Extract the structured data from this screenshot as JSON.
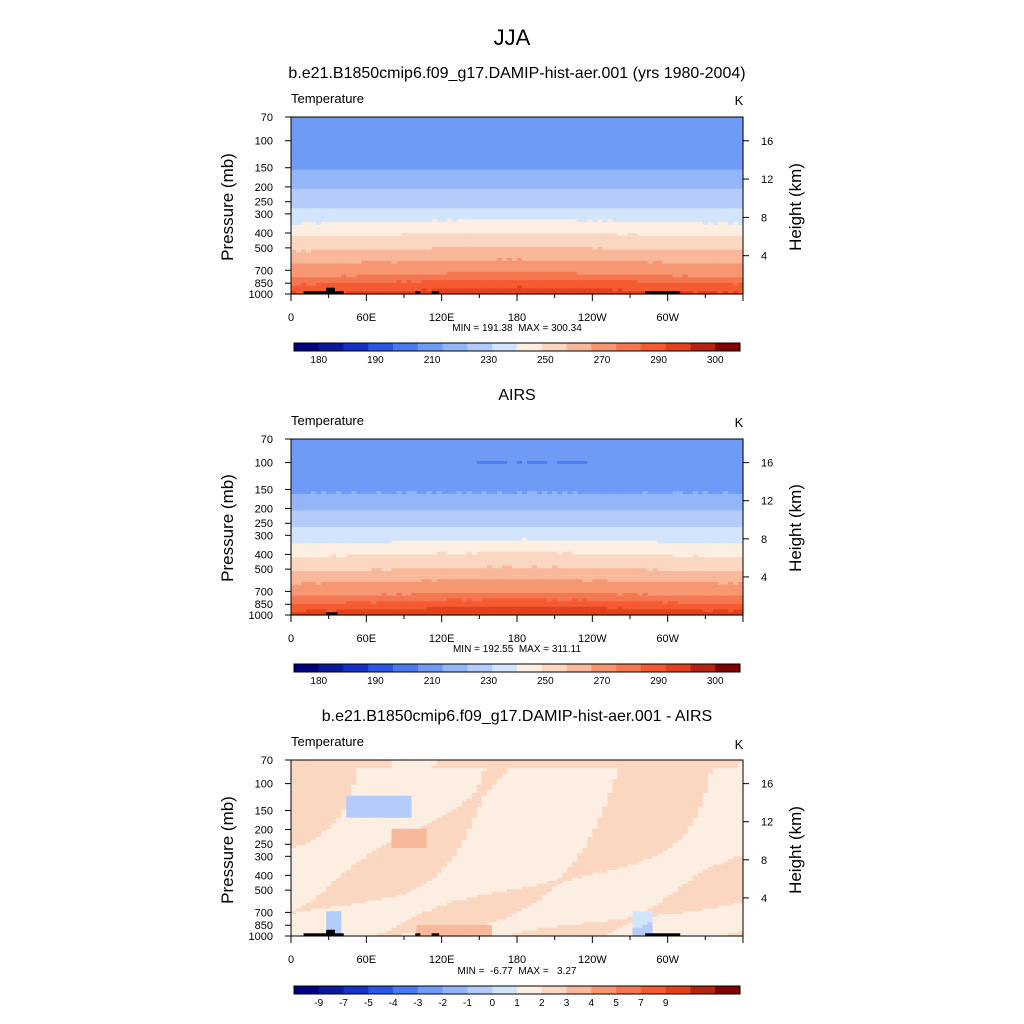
{
  "page": {
    "season": "JJA"
  },
  "colors": {
    "temp_palette": [
      "#00007f",
      "#0a1a9c",
      "#1431c8",
      "#2a56e6",
      "#4a7af0",
      "#6f9af6",
      "#93b6f9",
      "#b5ccfb",
      "#d3e4fd",
      "#fcefe2",
      "#fbd6c1",
      "#f8b899",
      "#f69772",
      "#f57750",
      "#f55a31",
      "#e3401d",
      "#b52411",
      "#7f0000"
    ],
    "temp_levels": [
      175,
      180,
      185,
      190,
      200,
      210,
      220,
      230,
      240,
      250,
      260,
      270,
      280,
      285,
      290,
      295,
      300
    ],
    "diff_palette": [
      "#00007f",
      "#0a1a9c",
      "#1431c8",
      "#2a56e6",
      "#4a7af0",
      "#6f9af6",
      "#93b6f9",
      "#b5ccfb",
      "#d3e4fd",
      "#fcefe2",
      "#fbd6c1",
      "#f8b899",
      "#f69772",
      "#f57750",
      "#f55a31",
      "#e3401d",
      "#b52411",
      "#7f0000"
    ],
    "diff_levels": [
      -11,
      -9,
      -8,
      -7,
      -6,
      -5,
      -4,
      -3,
      -2,
      -1,
      0,
      1,
      2,
      3,
      4,
      5,
      7,
      9
    ],
    "terrain": "#000000"
  },
  "chart_data": [
    {
      "type": "heatmap",
      "id": "model",
      "title": "b.e21.B1850cmip6.f09_g17.DAMIP-hist-aer.001 (yrs 1980-2004)",
      "left_label": "Temperature",
      "units": "K",
      "ylabel": "Pressure (mb)",
      "ylabel_right": "Height (km)",
      "yticks": [
        "70",
        "100",
        "150",
        "200",
        "250",
        "300",
        "400",
        "500",
        "700",
        "850",
        "1000"
      ],
      "yticks_right": [
        "16",
        "12",
        "8",
        "4"
      ],
      "xticks": [
        "0",
        "60E",
        "120E",
        "180",
        "120W",
        "60W"
      ],
      "stats": "MIN = 191.38  MAX = 300.34",
      "colorbar_labels": [
        "180",
        "190",
        "210",
        "230",
        "250",
        "270",
        "290",
        "300"
      ],
      "pressure_levels": [
        70,
        100,
        150,
        200,
        250,
        300,
        400,
        500,
        700,
        850,
        1000
      ],
      "mean_profile": [
        205,
        202,
        209,
        219,
        226,
        234,
        249,
        259,
        277,
        286,
        292
      ],
      "terrain": [
        {
          "lon_start": 10,
          "lon_end": 42,
          "depth_mb": 40
        },
        {
          "lon_start": 28,
          "lon_end": 35,
          "depth_mb": 90
        },
        {
          "lon_start": 99,
          "lon_end": 103,
          "depth_mb": 40
        },
        {
          "lon_start": 112,
          "lon_end": 118,
          "depth_mb": 40
        },
        {
          "lon_start": 282,
          "lon_end": 310,
          "depth_mb": 40
        }
      ]
    },
    {
      "type": "heatmap",
      "id": "obs",
      "title": "AIRS",
      "left_label": "Temperature",
      "units": "K",
      "ylabel": "Pressure (mb)",
      "ylabel_right": "Height (km)",
      "yticks": [
        "70",
        "100",
        "150",
        "200",
        "250",
        "300",
        "400",
        "500",
        "700",
        "850",
        "1000"
      ],
      "yticks_right": [
        "16",
        "12",
        "8",
        "4"
      ],
      "xticks": [
        "0",
        "60E",
        "120E",
        "180",
        "120W",
        "60W"
      ],
      "stats": "MIN = 192.55  MAX = 311.11",
      "colorbar_labels": [
        "180",
        "190",
        "210",
        "230",
        "250",
        "270",
        "290",
        "300"
      ],
      "pressure_levels": [
        70,
        100,
        150,
        200,
        250,
        300,
        400,
        500,
        700,
        850,
        1000
      ],
      "mean_profile": [
        206,
        201,
        208,
        219,
        227,
        235,
        250,
        260,
        278,
        287,
        294
      ],
      "terrain": [
        {
          "lon_start": 28,
          "lon_end": 37,
          "depth_mb": 40
        }
      ]
    },
    {
      "type": "heatmap",
      "id": "diff",
      "title": "b.e21.B1850cmip6.f09_g17.DAMIP-hist-aer.001 - AIRS",
      "left_label": "Temperature",
      "units": "K",
      "ylabel": "Pressure (mb)",
      "ylabel_right": "Height (km)",
      "yticks": [
        "70",
        "100",
        "150",
        "200",
        "250",
        "300",
        "400",
        "500",
        "700",
        "850",
        "1000"
      ],
      "yticks_right": [
        "16",
        "12",
        "8",
        "4"
      ],
      "xticks": [
        "0",
        "60E",
        "120E",
        "180",
        "120W",
        "60W"
      ],
      "stats": "MIN =  -6.77  MAX =   3.27",
      "colorbar_labels": [
        "-9",
        "-7",
        "-5",
        "-4",
        "-3",
        "-2",
        "-1",
        "0",
        "1",
        "2",
        "3",
        "4",
        "5",
        "7",
        "9"
      ],
      "terrain": [
        {
          "lon_start": 10,
          "lon_end": 42,
          "depth_mb": 40
        },
        {
          "lon_start": 28,
          "lon_end": 35,
          "depth_mb": 90
        },
        {
          "lon_start": 99,
          "lon_end": 103,
          "depth_mb": 40
        },
        {
          "lon_start": 112,
          "lon_end": 118,
          "depth_mb": 40
        },
        {
          "lon_start": 282,
          "lon_end": 310,
          "depth_mb": 40
        }
      ]
    }
  ]
}
